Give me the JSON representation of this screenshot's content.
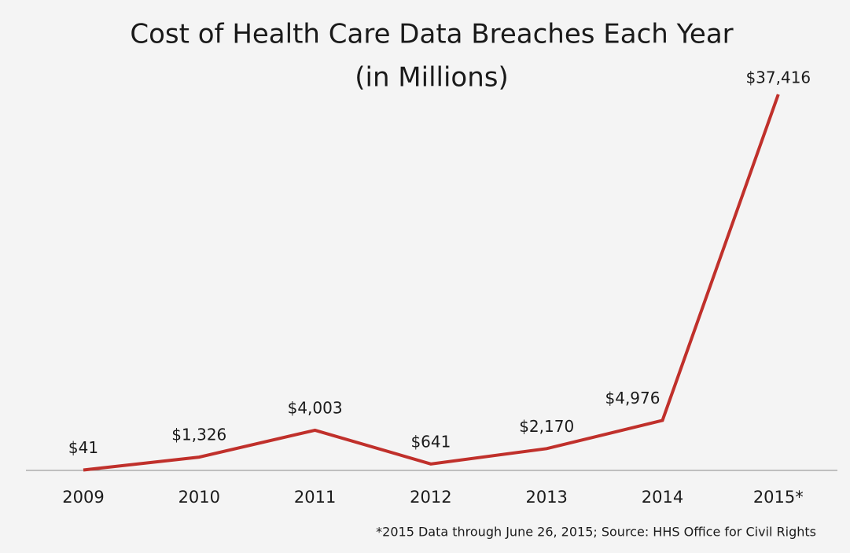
{
  "chart_data": {
    "type": "line",
    "title": "Cost of Health Care Data Breaches Each Year",
    "subtitle": "(in Millions)",
    "categories": [
      "2009",
      "2010",
      "2011",
      "2012",
      "2013",
      "2014",
      "2015*"
    ],
    "values": [
      41,
      1326,
      4003,
      641,
      2170,
      4976,
      37416
    ],
    "value_labels": [
      "$41",
      "$1,326",
      "$4,003",
      "$641",
      "$2,170",
      "$4,976",
      "$37,416"
    ],
    "color": "#c0302b",
    "note": "*2015 Data through June 26, 2015; Source: HHS Office for Civil Rights"
  }
}
